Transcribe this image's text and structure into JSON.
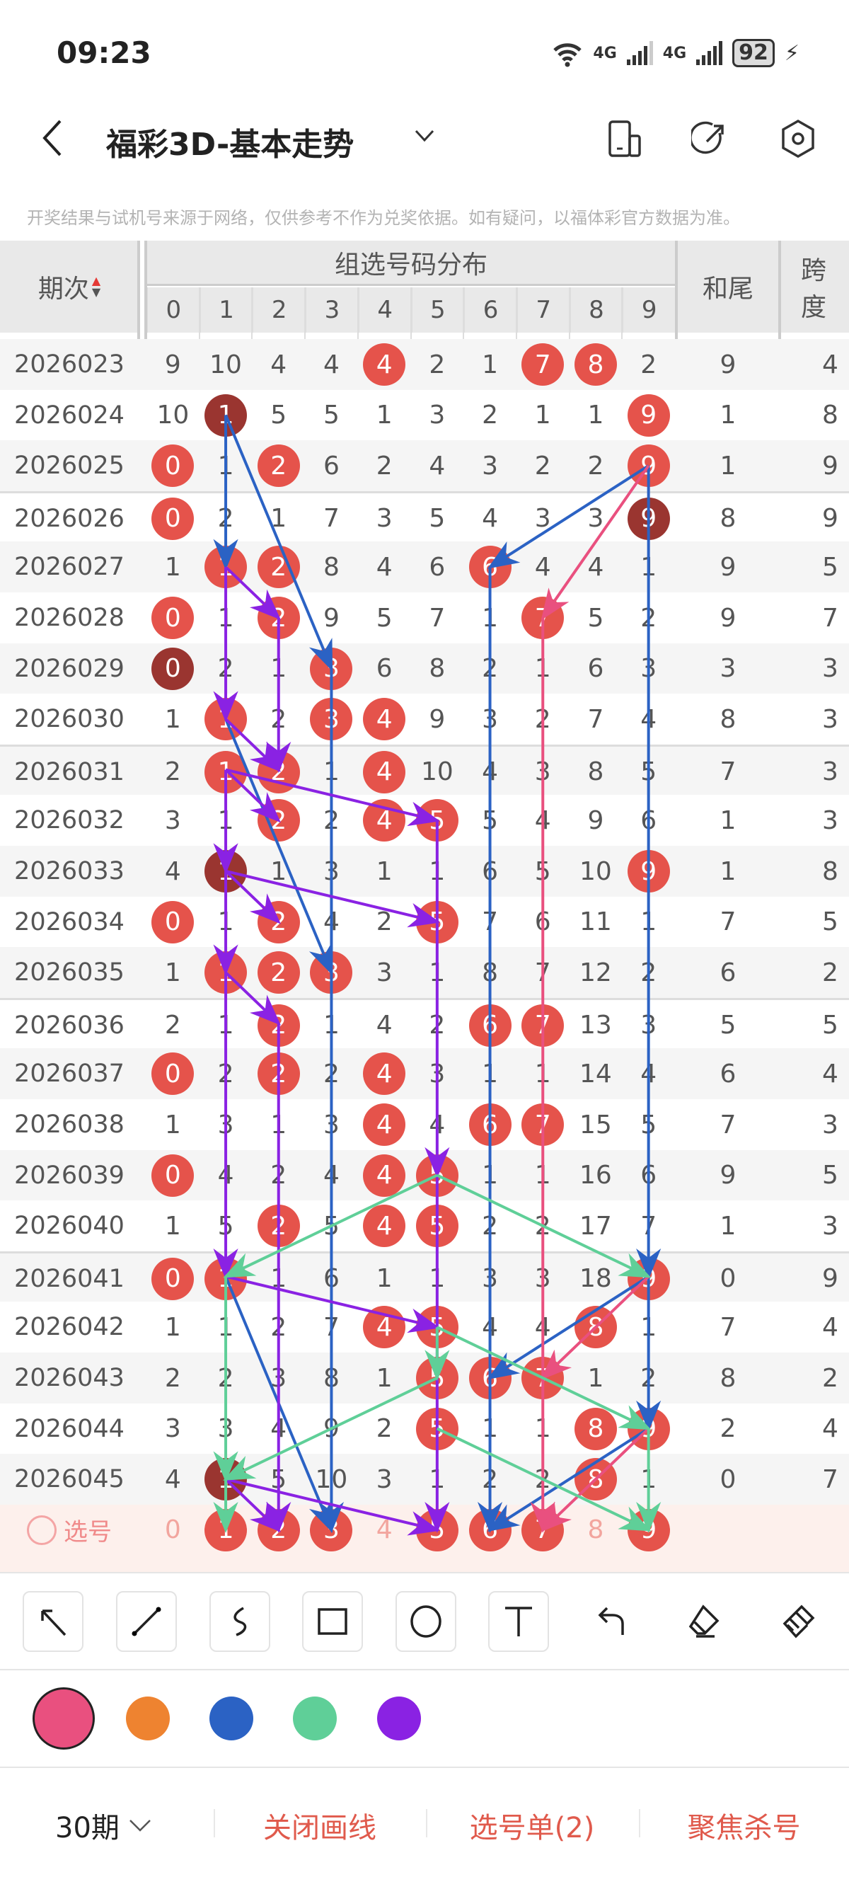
{
  "status_bar": {
    "time": "09:23",
    "network1": "4G",
    "network2": "4G",
    "battery": "92"
  },
  "header": {
    "title": "福彩3D-基本走势",
    "icons": [
      "back-chevron-icon",
      "dropdown-chevron-icon",
      "device-icon",
      "share-icon",
      "settings-icon"
    ]
  },
  "disclaimer": "开奖结果与试机号来源于网络，仅供参考不作为兑奖依据。如有疑问，以福体彩官方数据为准。",
  "table": {
    "col_issue": "期次",
    "group_title": "组选号码分布",
    "digits": [
      "0",
      "1",
      "2",
      "3",
      "4",
      "5",
      "6",
      "7",
      "8",
      "9"
    ],
    "col_sum_tail": "和尾",
    "col_span": "跨度",
    "rows": [
      {
        "issue": "2026023",
        "cells": [
          "9",
          "10",
          "4",
          "4",
          "4",
          "2",
          "1",
          "7",
          "8",
          "2"
        ],
        "hits": [
          4,
          7,
          8
        ],
        "dark": [],
        "sum_tail": "9",
        "span": "4"
      },
      {
        "issue": "2026024",
        "cells": [
          "10",
          "1",
          "5",
          "5",
          "1",
          "3",
          "2",
          "1",
          "1",
          "9"
        ],
        "hits": [
          1,
          9
        ],
        "dark": [
          1
        ],
        "sum_tail": "1",
        "span": "8"
      },
      {
        "issue": "2026025",
        "cells": [
          "0",
          "1",
          "2",
          "6",
          "2",
          "4",
          "3",
          "2",
          "2",
          "9"
        ],
        "hits": [
          0,
          2,
          9
        ],
        "dark": [],
        "sum_tail": "1",
        "span": "9"
      },
      {
        "issue": "2026026",
        "cells": [
          "0",
          "2",
          "1",
          "7",
          "3",
          "5",
          "4",
          "3",
          "3",
          "9"
        ],
        "hits": [
          0,
          9
        ],
        "dark": [
          9
        ],
        "sum_tail": "8",
        "span": "9"
      },
      {
        "issue": "2026027",
        "cells": [
          "1",
          "1",
          "2",
          "8",
          "4",
          "6",
          "6",
          "4",
          "4",
          "1"
        ],
        "hits": [
          1,
          2,
          6
        ],
        "dark": [],
        "sum_tail": "9",
        "span": "5"
      },
      {
        "issue": "2026028",
        "cells": [
          "0",
          "1",
          "2",
          "9",
          "5",
          "7",
          "1",
          "7",
          "5",
          "2"
        ],
        "hits": [
          0,
          2,
          7
        ],
        "dark": [],
        "sum_tail": "9",
        "span": "7"
      },
      {
        "issue": "2026029",
        "cells": [
          "0",
          "2",
          "1",
          "3",
          "6",
          "8",
          "2",
          "1",
          "6",
          "3"
        ],
        "hits": [
          0,
          3
        ],
        "dark": [
          0
        ],
        "sum_tail": "3",
        "span": "3"
      },
      {
        "issue": "2026030",
        "cells": [
          "1",
          "1",
          "2",
          "3",
          "4",
          "9",
          "3",
          "2",
          "7",
          "4"
        ],
        "hits": [
          1,
          3,
          4
        ],
        "dark": [],
        "sum_tail": "8",
        "span": "3"
      },
      {
        "issue": "2026031",
        "cells": [
          "2",
          "1",
          "2",
          "1",
          "4",
          "10",
          "4",
          "3",
          "8",
          "5"
        ],
        "hits": [
          1,
          2,
          4
        ],
        "dark": [],
        "sum_tail": "7",
        "span": "3"
      },
      {
        "issue": "2026032",
        "cells": [
          "3",
          "1",
          "2",
          "2",
          "4",
          "5",
          "5",
          "4",
          "9",
          "6"
        ],
        "hits": [
          2,
          4,
          5
        ],
        "dark": [],
        "sum_tail": "1",
        "span": "3"
      },
      {
        "issue": "2026033",
        "cells": [
          "4",
          "1",
          "1",
          "3",
          "1",
          "1",
          "6",
          "5",
          "10",
          "9"
        ],
        "hits": [
          1,
          9
        ],
        "dark": [
          1
        ],
        "sum_tail": "1",
        "span": "8"
      },
      {
        "issue": "2026034",
        "cells": [
          "0",
          "1",
          "2",
          "4",
          "2",
          "5",
          "7",
          "6",
          "11",
          "1"
        ],
        "hits": [
          0,
          2,
          5
        ],
        "dark": [],
        "sum_tail": "7",
        "span": "5"
      },
      {
        "issue": "2026035",
        "cells": [
          "1",
          "1",
          "2",
          "3",
          "3",
          "1",
          "8",
          "7",
          "12",
          "2"
        ],
        "hits": [
          1,
          2,
          3
        ],
        "dark": [],
        "sum_tail": "6",
        "span": "2"
      },
      {
        "issue": "2026036",
        "cells": [
          "2",
          "1",
          "2",
          "1",
          "4",
          "2",
          "6",
          "7",
          "13",
          "3"
        ],
        "hits": [
          2,
          6,
          7
        ],
        "dark": [],
        "sum_tail": "5",
        "span": "5"
      },
      {
        "issue": "2026037",
        "cells": [
          "0",
          "2",
          "2",
          "2",
          "4",
          "3",
          "1",
          "1",
          "14",
          "4"
        ],
        "hits": [
          0,
          2,
          4
        ],
        "dark": [],
        "sum_tail": "6",
        "span": "4"
      },
      {
        "issue": "2026038",
        "cells": [
          "1",
          "3",
          "1",
          "3",
          "4",
          "4",
          "6",
          "7",
          "15",
          "5"
        ],
        "hits": [
          4,
          6,
          7
        ],
        "dark": [],
        "sum_tail": "7",
        "span": "3"
      },
      {
        "issue": "2026039",
        "cells": [
          "0",
          "4",
          "2",
          "4",
          "4",
          "5",
          "1",
          "1",
          "16",
          "6"
        ],
        "hits": [
          0,
          4,
          5
        ],
        "dark": [],
        "sum_tail": "9",
        "span": "5"
      },
      {
        "issue": "2026040",
        "cells": [
          "1",
          "5",
          "2",
          "5",
          "4",
          "5",
          "2",
          "2",
          "17",
          "7"
        ],
        "hits": [
          2,
          4,
          5
        ],
        "dark": [],
        "sum_tail": "1",
        "span": "3"
      },
      {
        "issue": "2026041",
        "cells": [
          "0",
          "1",
          "1",
          "6",
          "1",
          "1",
          "3",
          "3",
          "18",
          "9"
        ],
        "hits": [
          0,
          1,
          9
        ],
        "dark": [],
        "sum_tail": "0",
        "span": "9"
      },
      {
        "issue": "2026042",
        "cells": [
          "1",
          "1",
          "2",
          "7",
          "4",
          "5",
          "4",
          "4",
          "8",
          "1"
        ],
        "hits": [
          4,
          5,
          8
        ],
        "dark": [],
        "sum_tail": "7",
        "span": "4"
      },
      {
        "issue": "2026043",
        "cells": [
          "2",
          "2",
          "3",
          "8",
          "1",
          "5",
          "6",
          "7",
          "1",
          "2"
        ],
        "hits": [
          5,
          6,
          7
        ],
        "dark": [],
        "sum_tail": "8",
        "span": "2"
      },
      {
        "issue": "2026044",
        "cells": [
          "3",
          "3",
          "4",
          "9",
          "2",
          "5",
          "1",
          "1",
          "8",
          "9"
        ],
        "hits": [
          5,
          8,
          9
        ],
        "dark": [],
        "sum_tail": "2",
        "span": "4"
      },
      {
        "issue": "2026045",
        "cells": [
          "4",
          "1",
          "5",
          "10",
          "3",
          "1",
          "2",
          "2",
          "8",
          "1"
        ],
        "hits": [
          1,
          8
        ],
        "dark": [
          1
        ],
        "sum_tail": "0",
        "span": "7"
      }
    ],
    "select_row": {
      "label": "选号",
      "cells": [
        "0",
        "1",
        "2",
        "3",
        "4",
        "5",
        "6",
        "7",
        "8",
        "9"
      ],
      "selected": [
        1,
        2,
        3,
        5,
        6,
        7,
        9
      ]
    }
  },
  "drawing_colors": {
    "pink": "#e9507f",
    "orange": "#ee8330",
    "blue": "#2b62c4",
    "green": "#5fcf98",
    "purple": "#8a22e3"
  },
  "drawn_lines": [
    {
      "color": "blue",
      "from": [
        "2026024",
        1
      ],
      "to": [
        "2026027",
        1
      ]
    },
    {
      "color": "blue",
      "from": [
        "2026024",
        1
      ],
      "to": [
        "2026029",
        3
      ]
    },
    {
      "color": "blue",
      "from": [
        "2026025",
        9
      ],
      "to": [
        "2026027",
        6
      ]
    },
    {
      "color": "blue",
      "from": [
        "2026025",
        9
      ],
      "to": [
        "2026041",
        9
      ]
    },
    {
      "color": "blue",
      "from": [
        "2026027",
        6
      ],
      "to": [
        "select",
        6
      ]
    },
    {
      "color": "blue",
      "from": [
        "2026029",
        3
      ],
      "to": [
        "select",
        3
      ]
    },
    {
      "color": "blue",
      "from": [
        "2026030",
        1
      ],
      "to": [
        "2026035",
        3
      ]
    },
    {
      "color": "blue",
      "from": [
        "2026041",
        1
      ],
      "to": [
        "select",
        3
      ]
    },
    {
      "color": "blue",
      "from": [
        "2026041",
        9
      ],
      "to": [
        "2026043",
        6
      ]
    },
    {
      "color": "blue",
      "from": [
        "2026041",
        9
      ],
      "to": [
        "2026044",
        9
      ]
    },
    {
      "color": "blue",
      "from": [
        "2026044",
        9
      ],
      "to": [
        "select",
        6
      ]
    },
    {
      "color": "pink",
      "from": [
        "2026025",
        9
      ],
      "to": [
        "2026028",
        7
      ]
    },
    {
      "color": "pink",
      "from": [
        "2026028",
        7
      ],
      "to": [
        "select",
        7
      ]
    },
    {
      "color": "pink",
      "from": [
        "2026041",
        9
      ],
      "to": [
        "2026043",
        7
      ]
    },
    {
      "color": "pink",
      "from": [
        "2026044",
        9
      ],
      "to": [
        "select",
        7
      ]
    },
    {
      "color": "purple",
      "from": [
        "2026027",
        1
      ],
      "to": [
        "2026028",
        2
      ]
    },
    {
      "color": "purple",
      "from": [
        "2026027",
        1
      ],
      "to": [
        "2026030",
        1
      ]
    },
    {
      "color": "purple",
      "from": [
        "2026028",
        2
      ],
      "to": [
        "2026031",
        2
      ]
    },
    {
      "color": "purple",
      "from": [
        "2026030",
        1
      ],
      "to": [
        "2026031",
        2
      ]
    },
    {
      "color": "purple",
      "from": [
        "2026031",
        1
      ],
      "to": [
        "2026032",
        5
      ]
    },
    {
      "color": "purple",
      "from": [
        "2026031",
        1
      ],
      "to": [
        "2026032",
        2
      ]
    },
    {
      "color": "purple",
      "from": [
        "2026031",
        1
      ],
      "to": [
        "2026033",
        1
      ]
    },
    {
      "color": "purple",
      "from": [
        "2026033",
        1
      ],
      "to": [
        "2026034",
        2
      ]
    },
    {
      "color": "purple",
      "from": [
        "2026033",
        1
      ],
      "to": [
        "2026034",
        5
      ]
    },
    {
      "color": "purple",
      "from": [
        "2026033",
        1
      ],
      "to": [
        "2026035",
        1
      ]
    },
    {
      "color": "purple",
      "from": [
        "2026035",
        1
      ],
      "to": [
        "2026036",
        2
      ]
    },
    {
      "color": "purple",
      "from": [
        "2026032",
        5
      ],
      "to": [
        "2026039",
        5
      ]
    },
    {
      "color": "purple",
      "from": [
        "2026035",
        1
      ],
      "to": [
        "2026041",
        1
      ]
    },
    {
      "color": "purple",
      "from": [
        "2026036",
        2
      ],
      "to": [
        "select",
        2
      ]
    },
    {
      "color": "purple",
      "from": [
        "2026041",
        1
      ],
      "to": [
        "2026042",
        5
      ]
    },
    {
      "color": "purple",
      "from": [
        "2026039",
        5
      ],
      "to": [
        "select",
        5
      ]
    },
    {
      "color": "purple",
      "from": [
        "2026045",
        1
      ],
      "to": [
        "select",
        5
      ]
    },
    {
      "color": "purple",
      "from": [
        "2026045",
        1
      ],
      "to": [
        "select",
        2
      ]
    },
    {
      "color": "green",
      "from": [
        "2026039",
        5
      ],
      "to": [
        "2026041",
        1
      ]
    },
    {
      "color": "green",
      "from": [
        "2026039",
        5
      ],
      "to": [
        "2026041",
        9
      ]
    },
    {
      "color": "green",
      "from": [
        "2026042",
        5
      ],
      "to": [
        "2026044",
        9
      ]
    },
    {
      "color": "green",
      "from": [
        "2026042",
        5
      ],
      "to": [
        "2026043",
        5
      ]
    },
    {
      "color": "green",
      "from": [
        "2026043",
        5
      ],
      "to": [
        "2026045",
        1
      ]
    },
    {
      "color": "green",
      "from": [
        "2026044",
        5
      ],
      "to": [
        "select",
        9
      ]
    },
    {
      "color": "green",
      "from": [
        "2026041",
        1
      ],
      "to": [
        "2026045",
        1
      ]
    },
    {
      "color": "green",
      "from": [
        "2026045",
        1
      ],
      "to": [
        "select",
        1
      ]
    },
    {
      "color": "green",
      "from": [
        "2026044",
        9
      ],
      "to": [
        "select",
        9
      ]
    }
  ],
  "toolbar": {
    "tools": [
      "arrow-tool",
      "line-tool",
      "freehand-tool",
      "rectangle-tool",
      "circle-tool",
      "text-tool",
      "undo",
      "eraser",
      "clear"
    ],
    "selected_color": "pink"
  },
  "bottom_bar": {
    "period": "30期",
    "close_drawing": "关闭画线",
    "pick_list": "选号单(2)",
    "focus_kill": "聚焦杀号"
  }
}
